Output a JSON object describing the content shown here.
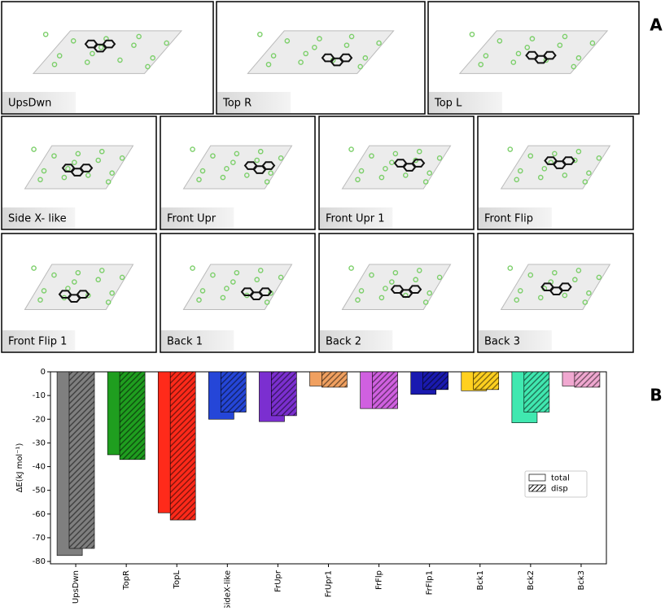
{
  "panel_labels": [
    "A",
    "B"
  ],
  "panel_a": {
    "structures": [
      "UpsDwn",
      "Top R",
      "Top L",
      "Side X- like",
      "Front Upr",
      "Front Upr 1",
      "Front Flip",
      "Front Flip 1",
      "Back 1",
      "Back 2",
      "Back 3"
    ]
  },
  "chart_data": {
    "type": "bar",
    "ylabel": "ΔE(kJ mol⁻¹)",
    "categories": [
      "UpsDwn",
      "TopR",
      "TopL",
      "SideX-like",
      "FrUpr",
      "FrUpr1",
      "FrFlp",
      "FrFlp1",
      "Bck1",
      "Bck2",
      "Bck3"
    ],
    "colors": [
      "#7f7f7f",
      "#1f9e1f",
      "#ff2a1a",
      "#2546d8",
      "#7b2fd0",
      "#f0a060",
      "#d060e0",
      "#1a1ab0",
      "#ffd020",
      "#40e8b0",
      "#f0a8d0"
    ],
    "series": [
      {
        "name": "total",
        "pattern": "solid",
        "values": [
          -77.5,
          -35,
          -59.5,
          -20,
          -21,
          -6,
          -15.5,
          -9.5,
          -8,
          -21.5,
          -6
        ]
      },
      {
        "name": "disp",
        "pattern": "hatch",
        "values": [
          -74.5,
          -37,
          -62.5,
          -17,
          -18.5,
          -6.5,
          -15.5,
          -7.5,
          -7.5,
          -17,
          -6.5
        ]
      }
    ],
    "ylim": [
      -81,
      0
    ],
    "yticks": [
      0,
      -10,
      -20,
      -30,
      -40,
      -50,
      -60,
      -70,
      -80
    ],
    "legend": "center right"
  }
}
